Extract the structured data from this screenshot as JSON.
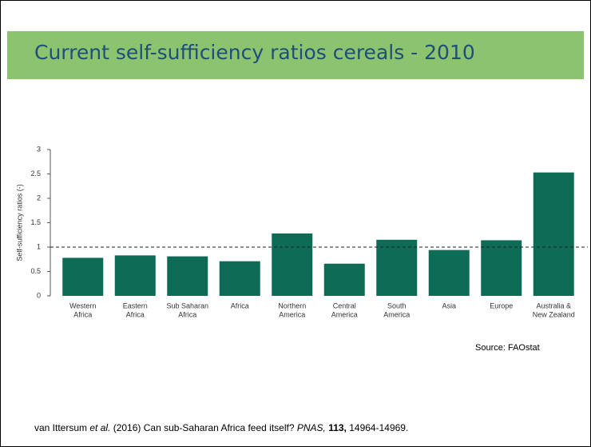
{
  "chart_data": {
    "type": "bar",
    "title": "Current self-sufficiency ratios cereals - 2010",
    "y_label": "Self-sufficiency ratios (-)",
    "categories": [
      [
        "Western",
        "Africa"
      ],
      [
        "Eastern",
        "Africa"
      ],
      [
        "Sub Saharan",
        "Africa"
      ],
      [
        "Africa"
      ],
      [
        "Northern",
        "America"
      ],
      [
        "Central",
        "America"
      ],
      [
        "South",
        "America"
      ],
      [
        "Asia"
      ],
      [
        "Europe"
      ],
      [
        "Australia &",
        "New Zealand"
      ]
    ],
    "values": [
      0.78,
      0.83,
      0.81,
      0.71,
      1.28,
      0.66,
      1.15,
      0.94,
      1.14,
      2.53
    ],
    "color": "#0e6b55",
    "ylim": [
      0,
      3
    ],
    "yticks": [
      0,
      0.5,
      1,
      1.5,
      2,
      2.5,
      3
    ],
    "reference_line": 1,
    "source": "Source: FAOstat"
  },
  "citation": {
    "authors": "van Ittersum ",
    "etal": "et al.",
    "rest": " (2016) Can sub-Saharan Africa feed itself? ",
    "journal": "PNAS,",
    "volume": " 113,",
    "pages": " 14964-14969."
  }
}
